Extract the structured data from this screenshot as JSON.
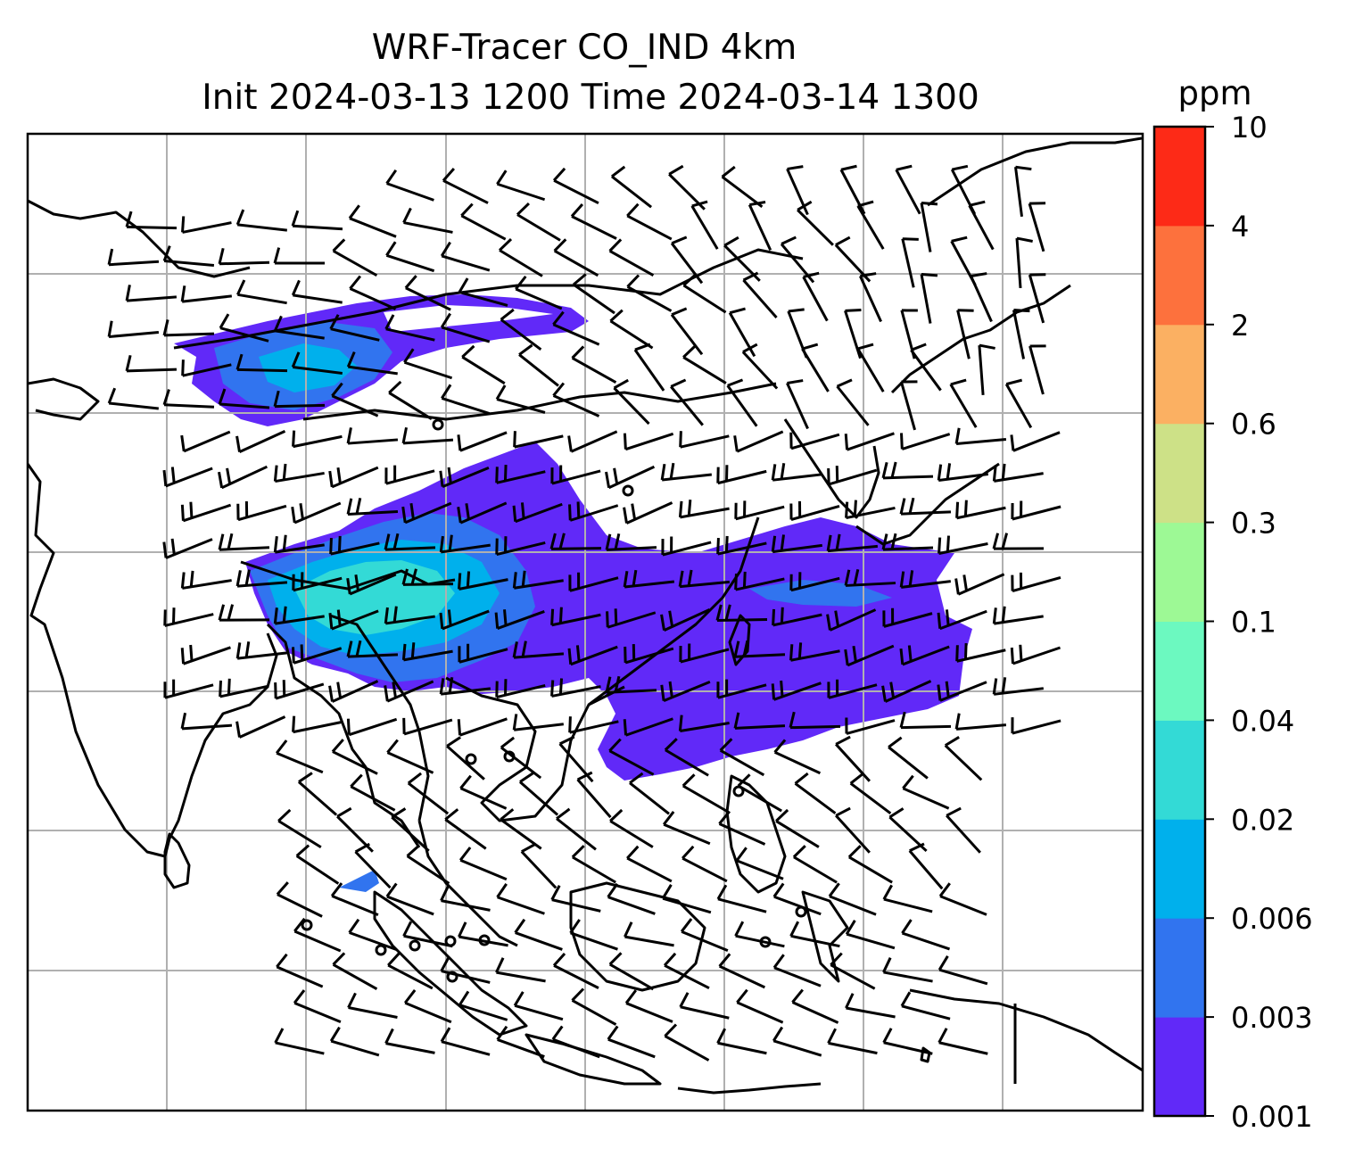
{
  "title": {
    "line1": "WRF-Tracer CO_IND 4km",
    "line2": "Init 2024-03-13 1200 Time 2024-03-14 1300"
  },
  "colorbar": {
    "unit_label": "ppm",
    "levels": [
      "0.001",
      "0.003",
      "0.006",
      "0.02",
      "0.04",
      "0.1",
      "0.3",
      "0.6",
      "2",
      "4",
      "10"
    ],
    "colors": [
      "#6129f8",
      "#3174ef",
      "#00b0ec",
      "#33dad6",
      "#6cf9c0",
      "#9df995",
      "#cde187",
      "#fbb062",
      "#fd713d",
      "#fd2a17"
    ]
  },
  "map": {
    "gridlines": true,
    "gridline_color": "#b0b0b0",
    "coastline_color": "#000000",
    "wind_barb_color": "#000000",
    "plume_levels": {
      "outer": "#6129f8",
      "mid": "#3174ef",
      "inner": "#00b0ec",
      "core": "#33dad6"
    }
  }
}
